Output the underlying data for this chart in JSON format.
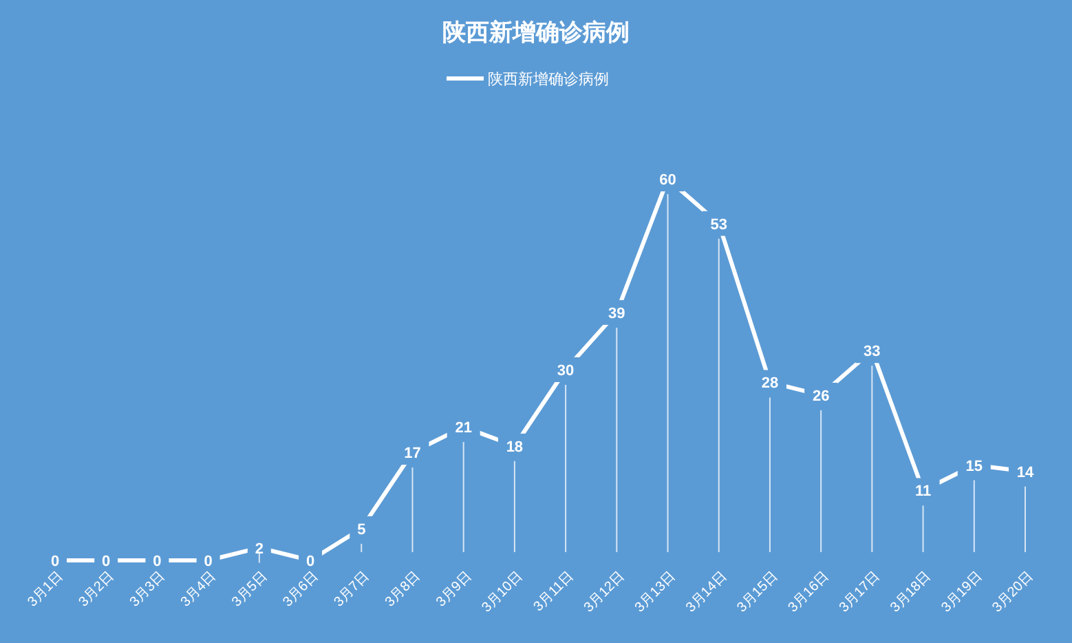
{
  "chart_data": {
    "type": "line",
    "title": "陕西新增确诊病例",
    "categories": [
      "3月1日",
      "3月2日",
      "3月3日",
      "3月4日",
      "3月5日",
      "3月6日",
      "3月7日",
      "3月8日",
      "3月9日",
      "3月10日",
      "3月11日",
      "3月12日",
      "3月13日",
      "3月14日",
      "3月15日",
      "3月16日",
      "3月17日",
      "3月18日",
      "3月19日",
      "3月20日"
    ],
    "series": [
      {
        "name": "陕西新增确诊病例",
        "color": "#ffffff",
        "values": [
          0,
          0,
          0,
          0,
          2,
          0,
          5,
          17,
          21,
          18,
          30,
          39,
          60,
          53,
          28,
          26,
          33,
          11,
          15,
          14
        ]
      }
    ],
    "data_labels": true,
    "legend": "top",
    "marker": "none",
    "line_style": "solid"
  }
}
